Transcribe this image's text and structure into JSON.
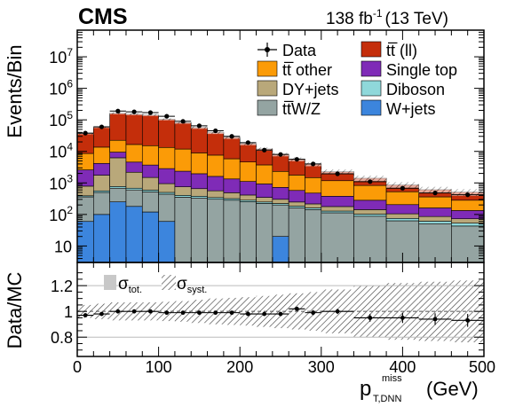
{
  "header": {
    "experiment": "CMS",
    "lumi_value": "138 fb",
    "lumi_exp": "-1",
    "lumi_energy": "(13 TeV)"
  },
  "colors": {
    "ttll": "#c42e0b",
    "ttother": "#fb9b07",
    "singletop": "#7f2bb7",
    "dyjets": "#b9a87a",
    "diboson": "#8fd8da",
    "ttwz": "#94a4a2",
    "wjets": "#3c85dd"
  },
  "chart_data": [
    {
      "type": "bar",
      "stacked": true,
      "log_y": true,
      "ylabel": "Events/Bin",
      "ylim": [
        3,
        70000000
      ],
      "xlim": [
        0,
        500
      ],
      "ytick_labels": [
        "10",
        "10^2",
        "10^3",
        "10^4",
        "10^5",
        "10^6",
        "10^7"
      ],
      "bin_edges": [
        0,
        20,
        40,
        60,
        80,
        100,
        120,
        140,
        160,
        180,
        200,
        220,
        240,
        260,
        280,
        300,
        340,
        380,
        420,
        460,
        500
      ],
      "legend_position": "top-right",
      "legend": [
        {
          "key": "data",
          "label": "Data",
          "marker": "point"
        },
        {
          "key": "ttll",
          "label": "tt̅ (ll)",
          "marker": "box"
        },
        {
          "key": "ttother",
          "label": "tt̅ other",
          "marker": "box"
        },
        {
          "key": "singletop",
          "label": "Single top",
          "marker": "box"
        },
        {
          "key": "dyjets",
          "label": "DY+jets",
          "marker": "box"
        },
        {
          "key": "diboson",
          "label": "Diboson",
          "marker": "box"
        },
        {
          "key": "ttwz",
          "label": "tt̅W/Z",
          "marker": "box"
        },
        {
          "key": "wjets",
          "label": "W+jets",
          "marker": "box"
        }
      ],
      "series": [
        {
          "key": "wjets",
          "values": [
            60,
            100,
            250,
            180,
            120,
            60,
            3,
            3,
            3,
            3,
            3,
            3,
            20,
            3,
            3,
            3,
            3,
            3,
            3,
            3
          ]
        },
        {
          "key": "ttwz",
          "values": [
            300,
            400,
            430,
            420,
            400,
            380,
            350,
            330,
            300,
            280,
            250,
            220,
            180,
            160,
            140,
            110,
            85,
            60,
            48,
            40
          ]
        },
        {
          "key": "diboson",
          "values": [
            30,
            60,
            90,
            80,
            70,
            60,
            50,
            45,
            40,
            35,
            30,
            25,
            22,
            20,
            18,
            15,
            14,
            12,
            10,
            10
          ]
        },
        {
          "key": "dyjets",
          "values": [
            400,
            1200,
            5500,
            1500,
            900,
            450,
            350,
            280,
            220,
            170,
            130,
            100,
            80,
            65,
            55,
            50,
            40,
            30,
            25,
            20
          ]
        },
        {
          "key": "singletop",
          "values": [
            1800,
            2400,
            3200,
            2400,
            2200,
            1900,
            1600,
            1300,
            1050,
            850,
            700,
            580,
            420,
            330,
            260,
            200,
            140,
            100,
            75,
            60
          ]
        },
        {
          "key": "ttother",
          "values": [
            6000,
            9500,
            13000,
            12000,
            11500,
            10500,
            9500,
            7000,
            6000,
            4500,
            3500,
            2800,
            1600,
            1200,
            1000,
            800,
            550,
            320,
            200,
            150
          ]
        },
        {
          "key": "ttll",
          "values": [
            28000,
            45000,
            140000,
            135000,
            127000,
            91000,
            70000,
            48000,
            32000,
            22000,
            13000,
            8200,
            5700,
            3900,
            2500,
            1100,
            580,
            340,
            250,
            230
          ]
        }
      ],
      "data_points": [
        38000,
        60000,
        190000,
        180000,
        170000,
        130000,
        90000,
        65000,
        45000,
        30000,
        19000,
        11000,
        8000,
        5600,
        4000,
        1950,
        1100,
        680,
        480,
        420
      ]
    },
    {
      "type": "scatter",
      "ylabel": "Data/MC",
      "xlabel": "p_T,DNN^miss (GeV)",
      "xlabel_main": "p",
      "xlabel_sup": "miss",
      "xlabel_sub": "T,DNN",
      "xlabel_unit": "(GeV)",
      "xlim": [
        0,
        500
      ],
      "ylim": [
        0.65,
        1.38
      ],
      "x_ticks": [
        "0",
        "100",
        "200",
        "300",
        "400",
        "500"
      ],
      "y_ticks": [
        "0.8",
        "1",
        "1.2"
      ],
      "legend": [
        {
          "key": "tot",
          "label": "σ",
          "sub": "tot."
        },
        {
          "key": "syst",
          "label": "σ",
          "sub": "syst."
        }
      ],
      "x_centers": [
        10,
        30,
        50,
        70,
        90,
        110,
        130,
        150,
        170,
        190,
        210,
        230,
        250,
        270,
        290,
        320,
        360,
        400,
        440,
        480
      ],
      "ratio": [
        0.97,
        0.98,
        1.0,
        1.0,
        1.0,
        0.99,
        0.99,
        0.99,
        0.99,
        0.99,
        0.98,
        0.98,
        0.98,
        1.02,
        0.99,
        1.0,
        0.95,
        0.95,
        0.94,
        0.93
      ],
      "ratio_err": [
        0.005,
        0.005,
        0.004,
        0.004,
        0.004,
        0.005,
        0.005,
        0.006,
        0.007,
        0.008,
        0.01,
        0.012,
        0.014,
        0.016,
        0.02,
        0.02,
        0.03,
        0.04,
        0.045,
        0.05
      ],
      "band_low": [
        0.95,
        0.94,
        0.93,
        0.93,
        0.93,
        0.925,
        0.92,
        0.91,
        0.9,
        0.895,
        0.89,
        0.88,
        0.87,
        0.86,
        0.85,
        0.83,
        0.8,
        0.78,
        0.77,
        0.76
      ],
      "band_high": [
        1.05,
        1.06,
        1.07,
        1.07,
        1.07,
        1.075,
        1.08,
        1.09,
        1.1,
        1.105,
        1.11,
        1.12,
        1.13,
        1.14,
        1.15,
        1.17,
        1.2,
        1.22,
        1.23,
        1.24
      ]
    }
  ]
}
